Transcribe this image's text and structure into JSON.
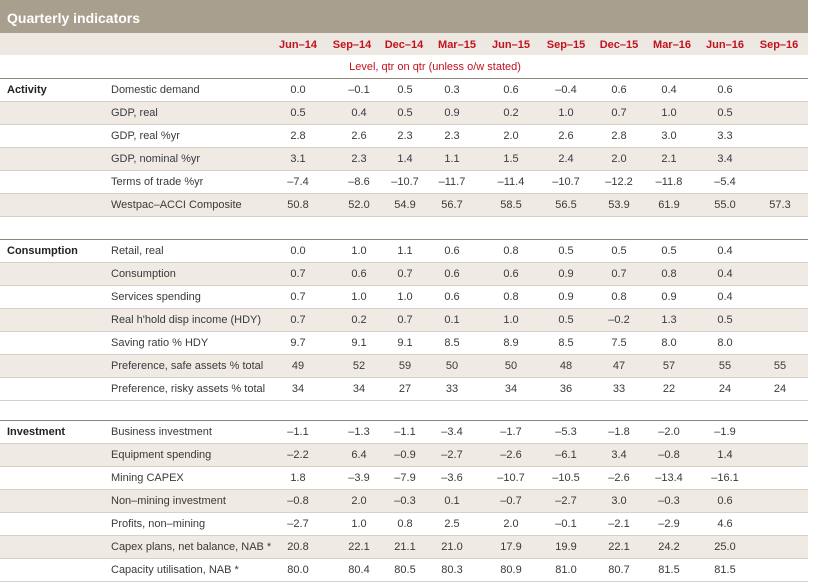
{
  "title": "Quarterly indicators",
  "columns": [
    "Jun–14",
    "Sep–14",
    "Dec–14",
    "Mar–15",
    "Jun–15",
    "Sep–15",
    "Dec–15",
    "Mar–16",
    "Jun–16",
    "Sep–16"
  ],
  "subtitle": "Level,  qtr on qtr (unless o/w stated)",
  "sections": [
    {
      "label": "Activity",
      "rows": [
        {
          "label": "Domestic demand",
          "values": [
            "0.0",
            "–0.1",
            "0.5",
            "0.3",
            "0.6",
            "–0.4",
            "0.6",
            "0.4",
            "0.6",
            ""
          ]
        },
        {
          "label": "GDP, real",
          "values": [
            "0.5",
            "0.4",
            "0.5",
            "0.9",
            "0.2",
            "1.0",
            "0.7",
            "1.0",
            "0.5",
            ""
          ]
        },
        {
          "label": "GDP, real %yr",
          "values": [
            "2.8",
            "2.6",
            "2.3",
            "2.3",
            "2.0",
            "2.6",
            "2.8",
            "3.0",
            "3.3",
            ""
          ]
        },
        {
          "label": "GDP, nominal %yr",
          "values": [
            "3.1",
            "2.3",
            "1.4",
            "1.1",
            "1.5",
            "2.4",
            "2.0",
            "2.1",
            "3.4",
            ""
          ]
        },
        {
          "label": "Terms of trade %yr",
          "values": [
            "–7.4",
            "–8.6",
            "–10.7",
            "–11.7",
            "–11.4",
            "–10.7",
            "–12.2",
            "–11.8",
            "–5.4",
            ""
          ]
        },
        {
          "label": "Westpac–ACCI Composite",
          "values": [
            "50.8",
            "52.0",
            "54.9",
            "56.7",
            "58.5",
            "56.5",
            "53.9",
            "61.9",
            "55.0",
            "57.3"
          ]
        }
      ]
    },
    {
      "label": "Consumption",
      "rows": [
        {
          "label": "Retail, real",
          "values": [
            "0.0",
            "1.0",
            "1.1",
            "0.6",
            "0.8",
            "0.5",
            "0.5",
            "0.5",
            "0.4",
            ""
          ]
        },
        {
          "label": "Consumption",
          "values": [
            "0.7",
            "0.6",
            "0.7",
            "0.6",
            "0.6",
            "0.9",
            "0.7",
            "0.8",
            "0.4",
            ""
          ]
        },
        {
          "label": "Services spending",
          "values": [
            "0.7",
            "1.0",
            "1.0",
            "0.6",
            "0.8",
            "0.9",
            "0.8",
            "0.9",
            "0.4",
            ""
          ]
        },
        {
          "label": "Real h'hold disp income (HDY)",
          "values": [
            "0.7",
            "0.2",
            "0.7",
            "0.1",
            "1.0",
            "0.5",
            "–0.2",
            "1.3",
            "0.5",
            ""
          ]
        },
        {
          "label": "Saving ratio % HDY",
          "values": [
            "9.7",
            "9.1",
            "9.1",
            "8.5",
            "8.9",
            "8.5",
            "7.5",
            "8.0",
            "8.0",
            ""
          ]
        },
        {
          "label": "Preference, safe assets % total",
          "values": [
            "49",
            "52",
            "59",
            "50",
            "50",
            "48",
            "47",
            "57",
            "55",
            "55"
          ]
        },
        {
          "label": "Preference, risky assets % total",
          "values": [
            "34",
            "34",
            "27",
            "33",
            "34",
            "36",
            "33",
            "22",
            "24",
            "24"
          ]
        }
      ]
    },
    {
      "label": "Investment",
      "rows": [
        {
          "label": "Business investment",
          "values": [
            "–1.1",
            "–1.3",
            "–1.1",
            "–3.4",
            "–1.7",
            "–5.3",
            "–1.8",
            "–2.0",
            "–1.9",
            ""
          ]
        },
        {
          "label": "Equipment spending",
          "values": [
            "–2.2",
            "6.4",
            "–0.9",
            "–2.7",
            "–2.6",
            "–6.1",
            "3.4",
            "–0.8",
            "1.4",
            ""
          ]
        },
        {
          "label": "Mining CAPEX",
          "values": [
            "1.8",
            "–3.9",
            "–7.9",
            "–3.6",
            "–10.7",
            "–10.5",
            "–2.6",
            "–13.4",
            "–16.1",
            ""
          ]
        },
        {
          "label": "Non–mining investment",
          "values": [
            "–0.8",
            "2.0",
            "–0.3",
            "0.1",
            "–0.7",
            "–2.7",
            "3.0",
            "–0.3",
            "0.6",
            ""
          ]
        },
        {
          "label": "Profits, non–mining",
          "values": [
            "–2.7",
            "1.0",
            "0.8",
            "2.5",
            "2.0",
            "–0.1",
            "–2.1",
            "–2.9",
            "4.6",
            ""
          ]
        },
        {
          "label": "Capex plans, net balance, NAB *",
          "values": [
            "20.8",
            "22.1",
            "21.1",
            "21.0",
            "17.9",
            "19.9",
            "22.1",
            "24.2",
            "25.0",
            ""
          ]
        },
        {
          "label": "Capacity utilisation, NAB *",
          "values": [
            "80.0",
            "80.4",
            "80.5",
            "80.3",
            "80.9",
            "81.0",
            "80.7",
            "81.5",
            "81.5",
            ""
          ]
        }
      ]
    }
  ]
}
